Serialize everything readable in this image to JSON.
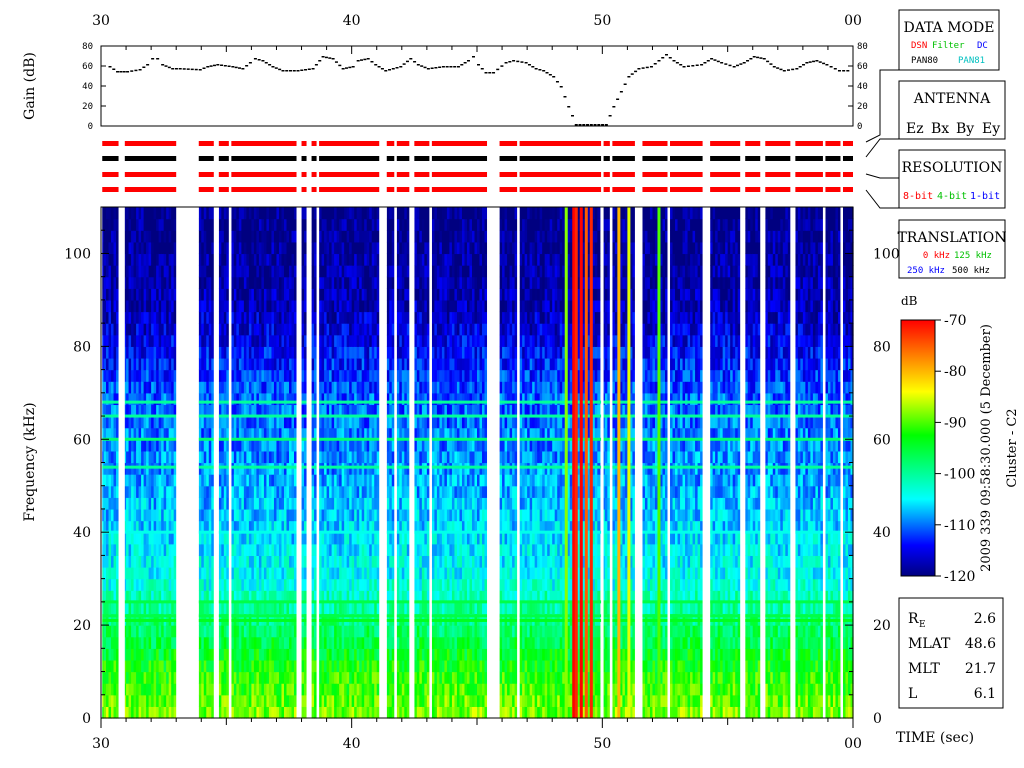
{
  "chart_data": {
    "type": "heatmap",
    "xlabel": "TIME (sec)",
    "ylabel": "Frequency (kHz)",
    "x_ticks": [
      "30",
      "40",
      "50",
      "00"
    ],
    "y_ticks": [
      "0",
      "20",
      "40",
      "60",
      "80",
      "100"
    ],
    "xlim": [
      30,
      60
    ],
    "ylim": [
      0,
      110
    ],
    "gain": {
      "ylabel": "Gain (dB)",
      "ticks": [
        "0",
        "20",
        "40",
        "60",
        "80"
      ],
      "ylim": [
        0,
        80
      ],
      "points": [
        [
          30.3,
          60
        ],
        [
          30.6,
          55
        ],
        [
          31.0,
          55
        ],
        [
          31.5,
          57
        ],
        [
          31.8,
          62
        ],
        [
          32.0,
          68
        ],
        [
          32.2,
          68
        ],
        [
          32.4,
          62
        ],
        [
          32.8,
          58
        ],
        [
          33.1,
          58
        ],
        [
          33.9,
          57
        ],
        [
          34.2,
          60
        ],
        [
          34.6,
          62
        ],
        [
          35.2,
          60
        ],
        [
          35.6,
          58
        ],
        [
          35.9,
          64
        ],
        [
          36.1,
          68
        ],
        [
          36.4,
          66
        ],
        [
          36.8,
          60
        ],
        [
          37.2,
          56
        ],
        [
          37.8,
          56
        ],
        [
          38.4,
          58
        ],
        [
          38.8,
          70
        ],
        [
          39.2,
          68
        ],
        [
          39.6,
          58
        ],
        [
          40.0,
          60
        ],
        [
          40.2,
          66
        ],
        [
          40.6,
          68
        ],
        [
          40.9,
          62
        ],
        [
          41.3,
          56
        ],
        [
          41.9,
          60
        ],
        [
          42.3,
          68
        ],
        [
          42.6,
          62
        ],
        [
          43.0,
          58
        ],
        [
          43.6,
          60
        ],
        [
          44.2,
          60
        ],
        [
          44.6,
          66
        ],
        [
          44.8,
          70
        ],
        [
          45.0,
          62
        ],
        [
          45.3,
          54
        ],
        [
          45.6,
          54
        ],
        [
          46.1,
          64
        ],
        [
          46.4,
          66
        ],
        [
          46.9,
          64
        ],
        [
          47.3,
          58
        ],
        [
          47.6,
          56
        ],
        [
          48.0,
          50
        ],
        [
          48.3,
          40
        ],
        [
          48.6,
          20
        ],
        [
          48.9,
          2
        ],
        [
          50.1,
          2
        ],
        [
          50.4,
          20
        ],
        [
          50.7,
          35
        ],
        [
          51.0,
          50
        ],
        [
          51.4,
          58
        ],
        [
          51.9,
          60
        ],
        [
          52.2,
          66
        ],
        [
          52.5,
          72
        ],
        [
          52.8,
          66
        ],
        [
          53.2,
          60
        ],
        [
          53.9,
          62
        ],
        [
          54.3,
          68
        ],
        [
          54.7,
          64
        ],
        [
          55.2,
          60
        ],
        [
          55.6,
          64
        ],
        [
          56.0,
          70
        ],
        [
          56.4,
          68
        ],
        [
          56.8,
          60
        ],
        [
          57.2,
          56
        ],
        [
          57.7,
          58
        ],
        [
          58.1,
          64
        ],
        [
          58.5,
          66
        ],
        [
          58.9,
          62
        ],
        [
          59.4,
          56
        ],
        [
          59.9,
          56
        ]
      ]
    },
    "colorbar": {
      "unit": "dB",
      "ticks": [
        "-70",
        "-80",
        "-90",
        "-100",
        "-110",
        "-120"
      ],
      "range": [
        -120,
        -70
      ]
    },
    "data_gaps": [
      [
        30.0,
        30.05
      ],
      [
        30.7,
        30.95
      ],
      [
        33.0,
        33.9
      ],
      [
        34.5,
        34.7
      ],
      [
        35.1,
        35.2
      ],
      [
        37.8,
        38.0
      ],
      [
        38.2,
        38.4
      ],
      [
        38.6,
        38.7
      ],
      [
        41.1,
        41.4
      ],
      [
        41.7,
        41.8
      ],
      [
        42.3,
        42.5
      ],
      [
        43.1,
        43.2
      ],
      [
        45.4,
        45.9
      ],
      [
        46.6,
        46.7
      ],
      [
        49.95,
        50.05
      ],
      [
        50.3,
        50.4
      ],
      [
        51.3,
        51.6
      ],
      [
        52.6,
        52.7
      ],
      [
        54.0,
        54.3
      ],
      [
        55.5,
        55.7
      ],
      [
        56.3,
        56.5
      ],
      [
        57.5,
        57.7
      ],
      [
        58.8,
        58.9
      ],
      [
        59.5,
        59.6
      ]
    ],
    "bright_lines": [
      [
        48.8,
        -70
      ],
      [
        48.9,
        -72
      ],
      [
        49.1,
        -70
      ],
      [
        49.3,
        -75
      ],
      [
        49.5,
        -72
      ],
      [
        50.6,
        -80
      ],
      [
        51.0,
        -85
      ],
      [
        48.5,
        -88
      ],
      [
        52.2,
        -90
      ]
    ],
    "harmonic_bands": [
      {
        "freq": 68,
        "level": -100
      },
      {
        "freq": 65,
        "level": -100
      },
      {
        "freq": 60,
        "level": -98
      },
      {
        "freq": 54,
        "level": -100
      },
      {
        "freq": 40,
        "level": -104
      },
      {
        "freq": 25,
        "level": -96
      },
      {
        "freq": 22,
        "level": -96
      },
      {
        "freq": 21,
        "level": -94
      }
    ],
    "background_profile": [
      [
        0,
        -88
      ],
      [
        10,
        -92
      ],
      [
        20,
        -98
      ],
      [
        30,
        -104
      ],
      [
        50,
        -108
      ],
      [
        70,
        -111
      ],
      [
        90,
        -118
      ],
      [
        110,
        -120
      ]
    ]
  },
  "info_panels": {
    "data_mode": {
      "title": "DATA MODE",
      "items": [
        {
          "text": "DSN",
          "color": "#ff0000"
        },
        {
          "text": "Filter",
          "color": "#00c000"
        },
        {
          "text": "DC",
          "color": "#0000ff"
        },
        {
          "text": "PAN80",
          "color": "#000000"
        },
        {
          "text": "PAN81",
          "color": "#00c0c0"
        }
      ]
    },
    "antenna": {
      "title": "ANTENNA",
      "items": [
        {
          "text": "Ez",
          "color": "#ff0000"
        },
        {
          "text": "Bx",
          "color": "#00c000"
        },
        {
          "text": "By",
          "color": "#0000ff"
        },
        {
          "text": "Ey",
          "color": "#000000"
        }
      ]
    },
    "resolution": {
      "title": "RESOLUTION",
      "items": [
        {
          "text": "8-bit",
          "color": "#ff0000"
        },
        {
          "text": "4-bit",
          "color": "#00c000"
        },
        {
          "text": "1-bit",
          "color": "#0000ff"
        }
      ]
    },
    "translation": {
      "title": "TRANSLATION",
      "items": [
        {
          "text": "0 kHz",
          "color": "#ff0000"
        },
        {
          "text": "125 kHz",
          "color": "#00c000"
        },
        {
          "text": "250 kHz",
          "color": "#0000ff"
        },
        {
          "text": "500 kHz",
          "color": "#000000"
        }
      ]
    }
  },
  "mode_bars": {
    "row_colors": [
      "#ff0000",
      "#000000",
      "#ff0000",
      "#ff0000"
    ],
    "segments": [
      [
        30.05,
        30.7
      ],
      [
        30.95,
        33.0
      ],
      [
        33.9,
        34.5
      ],
      [
        34.7,
        35.1
      ],
      [
        35.2,
        37.8
      ],
      [
        38.0,
        38.2
      ],
      [
        38.4,
        38.6
      ],
      [
        38.7,
        41.1
      ],
      [
        41.4,
        41.7
      ],
      [
        41.8,
        42.3
      ],
      [
        42.5,
        43.1
      ],
      [
        43.2,
        45.4
      ],
      [
        45.9,
        46.6
      ],
      [
        46.7,
        49.95
      ],
      [
        50.05,
        50.3
      ],
      [
        50.4,
        51.3
      ],
      [
        51.6,
        52.6
      ],
      [
        52.7,
        54.0
      ],
      [
        54.3,
        55.5
      ],
      [
        55.7,
        56.3
      ],
      [
        56.5,
        57.5
      ],
      [
        57.7,
        58.8
      ],
      [
        58.9,
        59.5
      ],
      [
        59.6,
        60.0
      ]
    ]
  },
  "vertical_label": "2009 339 09:58:30.000 (5 December)",
  "spacecraft": "Cluster - C2",
  "orbit": [
    {
      "name": "R",
      "sub": "E",
      "value": "2.6"
    },
    {
      "name": "MLAT",
      "sub": "",
      "value": "48.6"
    },
    {
      "name": "MLT",
      "sub": "",
      "value": "21.7"
    },
    {
      "name": "L",
      "sub": "",
      "value": "6.1"
    }
  ]
}
